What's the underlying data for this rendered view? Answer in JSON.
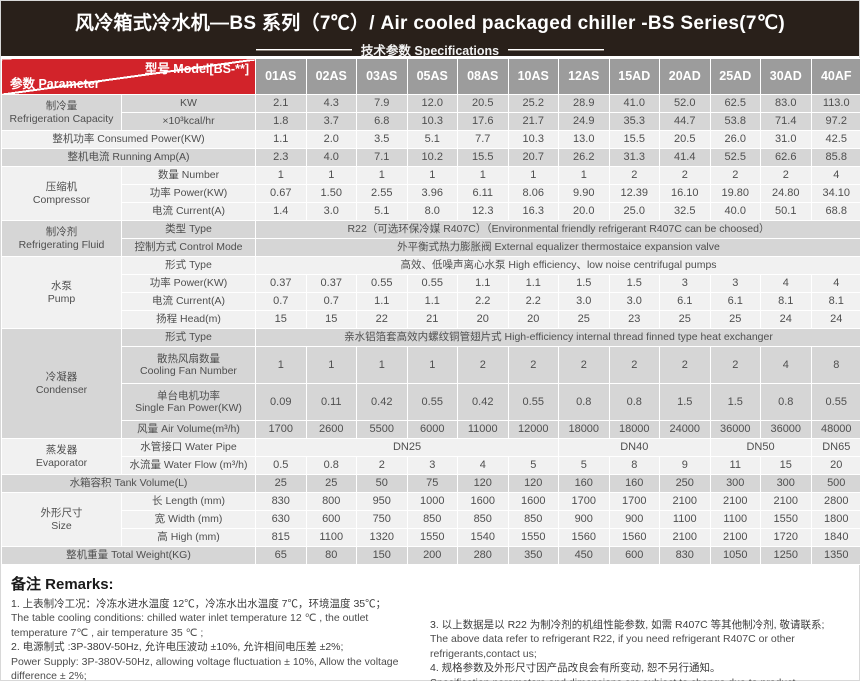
{
  "title_bar": {
    "title": "风冷箱式冷水机—BS 系列（7℃）/ Air cooled packaged chiller -BS Series(7℃)",
    "subtitle": "技术参数 Specifications"
  },
  "table": {
    "corner": {
      "param": "参数 Parameter",
      "model": "型号 Model[BS-**]"
    },
    "models": [
      "01AS",
      "02AS",
      "03AS",
      "05AS",
      "08AS",
      "10AS",
      "12AS",
      "15AD",
      "20AD",
      "25AD",
      "30AD",
      "40AF"
    ],
    "rows": [
      {
        "shade": "gray",
        "cat": {
          "text": "制冷量\nRefrigeration Capacity",
          "rows": 2
        },
        "label": {
          "text": "KW"
        },
        "values": [
          "2.1",
          "4.3",
          "7.9",
          "12.0",
          "20.5",
          "25.2",
          "28.9",
          "41.0",
          "52.0",
          "62.5",
          "83.0",
          "113.0"
        ]
      },
      {
        "shade": "gray",
        "label": {
          "text": "×10³kcal/hr"
        },
        "values": [
          "1.8",
          "3.7",
          "6.8",
          "10.3",
          "17.6",
          "21.7",
          "24.9",
          "35.3",
          "44.7",
          "53.8",
          "71.4",
          "97.2"
        ]
      },
      {
        "shade": "light",
        "label": {
          "text": "整机功率 Consumed Power(KW)",
          "wide": true
        },
        "values": [
          "1.1",
          "2.0",
          "3.5",
          "5.1",
          "7.7",
          "10.3",
          "13.0",
          "15.5",
          "20.5",
          "26.0",
          "31.0",
          "42.5"
        ]
      },
      {
        "shade": "gray",
        "label": {
          "text": "整机电流 Running Amp(A)",
          "wide": true
        },
        "values": [
          "2.3",
          "4.0",
          "7.1",
          "10.2",
          "15.5",
          "20.7",
          "26.2",
          "31.3",
          "41.4",
          "52.5",
          "62.6",
          "85.8"
        ]
      },
      {
        "shade": "light",
        "cat": {
          "text": "压缩机\nCompressor",
          "rows": 3
        },
        "label": {
          "text": "数量 Number"
        },
        "values": [
          "1",
          "1",
          "1",
          "1",
          "1",
          "1",
          "1",
          "2",
          "2",
          "2",
          "2",
          "4"
        ]
      },
      {
        "shade": "light",
        "label": {
          "text": "功率 Power(KW)"
        },
        "values": [
          "0.67",
          "1.50",
          "2.55",
          "3.96",
          "6.11",
          "8.06",
          "9.90",
          "12.39",
          "16.10",
          "19.80",
          "24.80",
          "34.10"
        ]
      },
      {
        "shade": "light",
        "label": {
          "text": "电流 Current(A)"
        },
        "values": [
          "1.4",
          "3.0",
          "5.1",
          "8.0",
          "12.3",
          "16.3",
          "20.0",
          "25.0",
          "32.5",
          "40.0",
          "50.1",
          "68.8"
        ]
      },
      {
        "shade": "gray",
        "cat": {
          "text": "制冷剂\nRefrigerating Fluid",
          "rows": 2
        },
        "label": {
          "text": "类型 Type"
        },
        "merged": "R22（可选环保冷媒 R407C）（Environmental friendly refrigerant R407C can be choosed）"
      },
      {
        "shade": "gray",
        "label": {
          "text": "控制方式 Control Mode"
        },
        "merged": "外平衡式热力膨胀阀 External equalizer thermostaice expansion valve"
      },
      {
        "shade": "light",
        "cat": {
          "text": "水泵\nPump",
          "rows": 4
        },
        "label": {
          "text": "形式 Type"
        },
        "merged": "高效、低噪声离心水泵 High efficiency、low noise centrifugal pumps"
      },
      {
        "shade": "light",
        "label": {
          "text": "功率 Power(KW)"
        },
        "values": [
          "0.37",
          "0.37",
          "0.55",
          "0.55",
          "1.1",
          "1.1",
          "1.5",
          "1.5",
          "3",
          "3",
          "4",
          "4"
        ]
      },
      {
        "shade": "light",
        "label": {
          "text": "电流 Current(A)"
        },
        "values": [
          "0.7",
          "0.7",
          "1.1",
          "1.1",
          "2.2",
          "2.2",
          "3.0",
          "3.0",
          "6.1",
          "6.1",
          "8.1",
          "8.1"
        ]
      },
      {
        "shade": "light",
        "label": {
          "text": "扬程 Head(m)"
        },
        "values": [
          "15",
          "15",
          "22",
          "21",
          "20",
          "20",
          "25",
          "23",
          "25",
          "25",
          "24",
          "24"
        ]
      },
      {
        "shade": "gray",
        "cat": {
          "text": "冷凝器\nCondenser",
          "rows": 4
        },
        "label": {
          "text": "形式 Type"
        },
        "merged": "亲水铝箔套高效内螺纹铜管翅片式 High-efficiency internal thread finned type heat exchanger"
      },
      {
        "shade": "gray",
        "label": {
          "text": "散热风扇数量\nCooling Fan Number"
        },
        "values": [
          "1",
          "1",
          "1",
          "1",
          "2",
          "2",
          "2",
          "2",
          "2",
          "2",
          "4",
          "8"
        ]
      },
      {
        "shade": "gray",
        "label": {
          "text": "单台电机功率\nSingle Fan Power(KW)"
        },
        "values": [
          "0.09",
          "0.11",
          "0.42",
          "0.55",
          "0.42",
          "0.55",
          "0.8",
          "0.8",
          "1.5",
          "1.5",
          "0.8",
          "0.55"
        ]
      },
      {
        "shade": "gray",
        "label": {
          "text": "风量 Air Volume(m³/h)"
        },
        "values": [
          "1700",
          "2600",
          "5500",
          "6000",
          "11000",
          "12000",
          "18000",
          "18000",
          "24000",
          "36000",
          "36000",
          "48000"
        ]
      },
      {
        "shade": "light",
        "cat": {
          "text": "蒸发器\nEvaporator",
          "rows": 2
        },
        "label": {
          "text": "水管接口 Water Pipe"
        },
        "spans": [
          {
            "text": "DN25",
            "span": 6
          },
          {
            "text": "DN40",
            "span": 3
          },
          {
            "text": "DN50",
            "span": 2
          },
          {
            "text": "DN65",
            "span": 1
          }
        ]
      },
      {
        "shade": "light",
        "label": {
          "text": "水流量 Water Flow (m³/h)"
        },
        "values": [
          "0.5",
          "0.8",
          "2",
          "3",
          "4",
          "5",
          "5",
          "8",
          "9",
          "11",
          "15",
          "20"
        ]
      },
      {
        "shade": "gray",
        "label": {
          "text": "水箱容积 Tank Volume(L)",
          "wide": true
        },
        "values": [
          "25",
          "25",
          "50",
          "75",
          "120",
          "120",
          "160",
          "160",
          "250",
          "300",
          "300",
          "500"
        ]
      },
      {
        "shade": "light",
        "cat": {
          "text": "外形尺寸\nSize",
          "rows": 3
        },
        "label": {
          "text": "长 Length (mm)"
        },
        "values": [
          "830",
          "800",
          "950",
          "1000",
          "1600",
          "1600",
          "1700",
          "1700",
          "2100",
          "2100",
          "2100",
          "2800"
        ]
      },
      {
        "shade": "light",
        "label": {
          "text": "宽 Width (mm)"
        },
        "values": [
          "630",
          "600",
          "750",
          "850",
          "850",
          "850",
          "900",
          "900",
          "1100",
          "1100",
          "1550",
          "1800"
        ]
      },
      {
        "shade": "light",
        "label": {
          "text": "高 High (mm)"
        },
        "values": [
          "815",
          "1100",
          "1320",
          "1550",
          "1540",
          "1550",
          "1560",
          "1560",
          "2100",
          "2100",
          "1720",
          "1840"
        ]
      },
      {
        "shade": "gray",
        "label": {
          "text": "整机重量 Total Weight(KG)",
          "wide": true
        },
        "values": [
          "65",
          "80",
          "150",
          "200",
          "280",
          "350",
          "450",
          "600",
          "830",
          "1050",
          "1250",
          "1350"
        ]
      }
    ]
  },
  "remarks": {
    "heading": "备注 Remarks:",
    "left": [
      {
        "zh": "1. 上表制冷工况：冷冻水进水温度 12℃，冷冻水出水温度 7℃，环境温度 35℃；",
        "en": "The table cooling conditions: chilled water inlet temperature 12 ℃ , the outlet temperature 7℃ , air temperature 35 ℃ ;"
      },
      {
        "zh": "2. 电源制式 :3P-380V-50Hz, 允许电压波动 ±10%, 允许相间电压差 ±2%;",
        "en": "Power Supply: 3P-380V-50Hz, allowing voltage fluctuation ± 10%, Allow the voltage difference ± 2%;"
      }
    ],
    "right": [
      {
        "zh": "3. 以上数据是以 R22 为制冷剂的机组性能参数, 如需 R407C 等其他制冷剂, 敬请联系;",
        "en": "The above data refer to refrigerant R22, if you need refrigerant R407C or other refrigerants,contact us;"
      },
      {
        "zh": "4. 规格参数及外形尺寸因产品改良会有所变动, 恕不另行通知。",
        "en": "Specification parameters and dimensions are subject to change due to product improvement without notice."
      }
    ]
  }
}
